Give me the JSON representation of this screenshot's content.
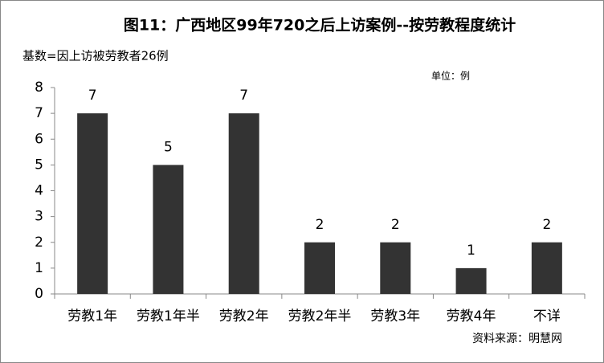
{
  "chart_data": {
    "type": "bar",
    "title": "图11：广西地区99年720之后上访案例--按劳教程度统计",
    "subtitle": "基数=因上访被劳教者26例",
    "unit_note": "单位：例",
    "source": "资料来源：明慧网",
    "categories": [
      "劳教1年",
      "劳教1年半",
      "劳教2年",
      "劳教2年半",
      "劳教3年",
      "劳教4年",
      "不详"
    ],
    "values": [
      7,
      5,
      7,
      2,
      2,
      1,
      2
    ],
    "color": "#333333",
    "ylim": [
      0,
      8
    ],
    "yticks": [
      0,
      1,
      2,
      3,
      4,
      5,
      6,
      7,
      8
    ],
    "grid": false
  }
}
